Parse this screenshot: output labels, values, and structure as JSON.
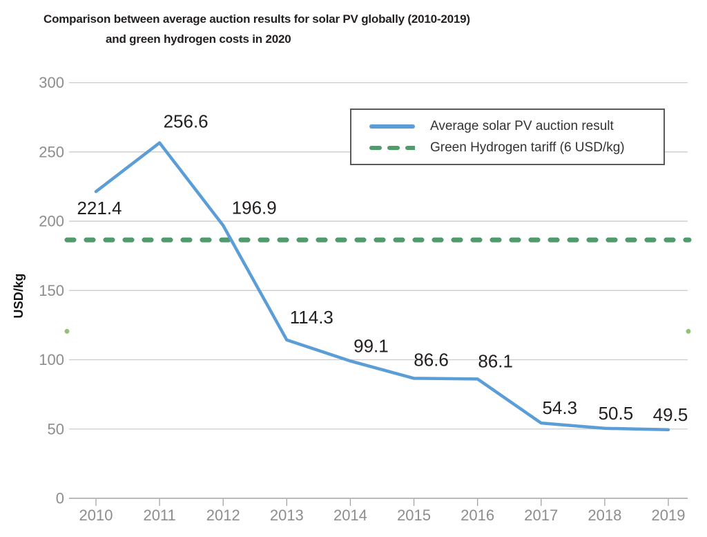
{
  "title": {
    "line1": "Comparison between average auction results for solar PV globally (2010-2019)",
    "line2": "and green hydrogen costs in 2020"
  },
  "legend": {
    "items": [
      {
        "label": "Average solar PV auction result",
        "swatch": "solid-line",
        "color": "#5b9ed7"
      },
      {
        "label": "Green Hydrogen tariff (6 USD/kg)",
        "swatch": "dashed-line",
        "color": "#4f9b6b"
      }
    ]
  },
  "chart_data": {
    "type": "line",
    "title": "Comparison between average auction results for solar PV globally (2010-2019) and green hydrogen costs in 2020",
    "xlabel": "",
    "ylabel": "USD/kg",
    "x_categories": [
      "2010",
      "2011",
      "2012",
      "2013",
      "2014",
      "2015",
      "2016",
      "2017",
      "2018",
      "2019"
    ],
    "ylim": [
      0,
      300
    ],
    "yticks": [
      0,
      50,
      100,
      150,
      200,
      250,
      300
    ],
    "grid": true,
    "legend_position": "top-right",
    "series": [
      {
        "name": "Average solar PV auction result",
        "style": "solid",
        "color": "#5b9ed7",
        "values": [
          221.4,
          256.6,
          196.9,
          114.3,
          99.1,
          86.6,
          86.1,
          54.3,
          50.5,
          49.5
        ],
        "data_labels": true
      },
      {
        "name": "Green Hydrogen tariff (6 USD/kg)",
        "style": "dashed",
        "color": "#4f9b6b",
        "constant": true,
        "tariff_usd_per_kg": 6,
        "plotted_level": 186.5
      }
    ],
    "edge_dots": {
      "level": 120.5,
      "color": "#94bf79"
    }
  },
  "colors": {
    "grid": "#cbcbcb",
    "axis": "#a3a3a3",
    "tick_text": "#8d8d8d",
    "label_text": "#231f20",
    "legend_border": "#58595b",
    "background": "#ffffff"
  }
}
